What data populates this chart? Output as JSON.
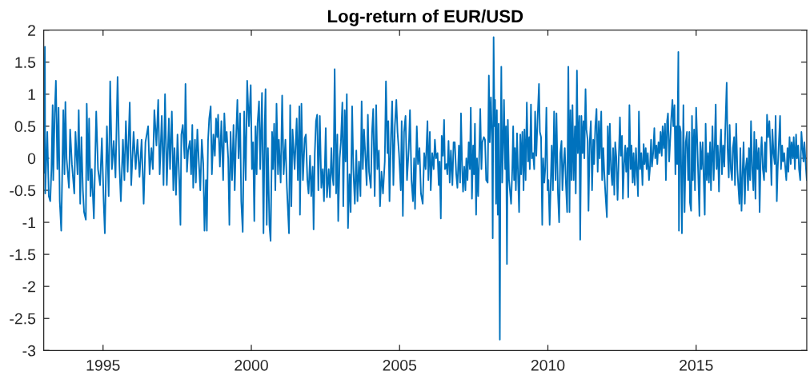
{
  "chart_data": {
    "type": "line",
    "title": "Log-return of EUR/USD",
    "x": [
      1993.0,
      1993.04,
      1993.05,
      1993.12,
      1993.17,
      1993.22,
      1993.26,
      1993.3,
      1993.32,
      1993.37,
      1993.41,
      1993.46,
      1993.5,
      1993.54,
      1993.59,
      1993.66,
      1993.7,
      1993.73,
      1993.77,
      1993.85,
      1993.89,
      1993.95,
      1994.03,
      1994.07,
      1994.14,
      1994.18,
      1994.23,
      1994.27,
      1994.32,
      1994.36,
      1994.42,
      1994.45,
      1994.5,
      1994.53,
      1994.58,
      1994.62,
      1994.69,
      1994.77,
      1994.83,
      1994.9,
      1994.96,
      1995.02,
      1995.06,
      1995.13,
      1995.19,
      1995.24,
      1995.3,
      1995.36,
      1995.42,
      1995.49,
      1995.55,
      1995.6,
      1995.67,
      1995.72,
      1995.77,
      1995.83,
      1995.9,
      1995.95,
      1996.03,
      1996.1,
      1996.16,
      1996.23,
      1996.3,
      1996.37,
      1996.43,
      1996.52,
      1996.57,
      1996.63,
      1996.68,
      1996.73,
      1996.8,
      1996.86,
      1996.91,
      1996.98,
      1997.04,
      1997.09,
      1997.15,
      1997.22,
      1997.26,
      1997.32,
      1997.37,
      1997.41,
      1997.46,
      1997.51,
      1997.57,
      1997.61,
      1997.64,
      1997.69,
      1997.75,
      1997.78,
      1997.83,
      1997.87,
      1997.93,
      1997.97,
      1998.01,
      1998.04,
      1998.1,
      1998.13,
      1998.18,
      1998.23,
      1998.28,
      1998.33,
      1998.38,
      1998.42,
      1998.47,
      1998.5,
      1998.54,
      1998.58,
      1998.63,
      1998.67,
      1998.72,
      1998.77,
      1998.81,
      1998.85,
      1998.88,
      1998.94,
      1998.99,
      1999.05,
      1999.09,
      1999.13,
      1999.17,
      1999.22,
      1999.26,
      1999.3,
      1999.35,
      1999.4,
      1999.44,
      1999.48,
      1999.53,
      1999.57,
      1999.62,
      1999.66,
      1999.71,
      1999.76,
      1999.81,
      1999.86,
      1999.92,
      1999.98,
      2000.02,
      2000.06,
      2000.1,
      2000.14,
      2000.18,
      2000.21,
      2000.26,
      2000.3,
      2000.36,
      2000.41,
      2000.45,
      2000.48,
      2000.52,
      2000.56,
      2000.61,
      2000.65,
      2000.7,
      2000.73,
      2000.77,
      2000.81,
      2000.85,
      2000.9,
      2000.93,
      2000.99,
      2001.04,
      2001.09,
      2001.15,
      2001.2,
      2001.27,
      2001.31,
      2001.35,
      2001.39,
      2001.46,
      2001.53,
      2001.57,
      2001.62,
      2001.64,
      2001.69,
      2001.74,
      2001.8,
      2001.84,
      2001.89,
      2001.93,
      2001.98,
      2002.02,
      2002.07,
      2002.1,
      2002.14,
      2002.18,
      2002.22,
      2002.26,
      2002.31,
      2002.36,
      2002.41,
      2002.45,
      2002.51,
      2002.55,
      2002.61,
      2002.65,
      2002.7,
      2002.73,
      2002.77,
      2002.81,
      2002.86,
      2002.9,
      2002.93,
      2002.98,
      2003.02,
      2003.07,
      2003.1,
      2003.15,
      2003.18,
      2003.22,
      2003.26,
      2003.31,
      2003.35,
      2003.4,
      2003.44,
      2003.49,
      2003.54,
      2003.58,
      2003.63,
      2003.68,
      2003.72,
      2003.76,
      2003.8,
      2003.85,
      2003.89,
      2003.93,
      2003.97,
      2004.03,
      2004.07,
      2004.11,
      2004.16,
      2004.21,
      2004.25,
      2004.3,
      2004.34,
      2004.39,
      2004.44,
      2004.5,
      2004.54,
      2004.59,
      2004.62,
      2004.66,
      2004.71,
      2004.75,
      2004.79,
      2004.84,
      2004.89,
      2004.93,
      2004.98,
      2005.04,
      2005.07,
      2005.11,
      2005.15,
      2005.2,
      2005.25,
      2005.31,
      2005.35,
      2005.4,
      2005.45,
      2005.49,
      2005.52,
      2005.58,
      2005.62,
      2005.67,
      2005.72,
      2005.78,
      2005.83,
      2005.88,
      2005.94,
      2005.97,
      2006.02,
      2006.05,
      2006.1,
      2006.15,
      2006.19,
      2006.23,
      2006.28,
      2006.32,
      2006.35,
      2006.39,
      2006.42,
      2006.46,
      2006.5,
      2006.53,
      2006.58,
      2006.61,
      2006.65,
      2006.69,
      2006.73,
      2006.78,
      2006.82,
      2006.86,
      2006.91,
      2006.95,
      2007.0,
      2007.04,
      2007.07,
      2007.11,
      2007.14,
      2007.18,
      2007.22,
      2007.25,
      2007.29,
      2007.33,
      2007.37,
      2007.4,
      2007.44,
      2007.48,
      2007.51,
      2007.54,
      2007.58,
      2007.61,
      2007.65,
      2007.68,
      2007.72,
      2007.76,
      2007.79,
      2007.84,
      2007.88,
      2007.92,
      2007.97,
      2008.01,
      2008.04,
      2008.08,
      2008.12,
      2008.14,
      2008.17,
      2008.2,
      2008.22,
      2008.25,
      2008.28,
      2008.31,
      2008.34,
      2008.38,
      2008.4,
      2008.43,
      2008.46,
      2008.49,
      2008.52,
      2008.56,
      2008.59,
      2008.62,
      2008.65,
      2008.69,
      2008.73,
      2008.76,
      2008.8,
      2008.83,
      2008.86,
      2008.89,
      2008.92,
      2008.96,
      2009.0,
      2009.03,
      2009.07,
      2009.1,
      2009.14,
      2009.18,
      2009.21,
      2009.25,
      2009.29,
      2009.33,
      2009.37,
      2009.39,
      2009.43,
      2009.46,
      2009.5,
      2009.54,
      2009.57,
      2009.61,
      2009.65,
      2009.7,
      2009.73,
      2009.77,
      2009.81,
      2009.84,
      2009.88,
      2009.91,
      2009.95,
      2009.99,
      2010.02,
      2010.06,
      2010.13,
      2010.17,
      2010.21,
      2010.26,
      2010.29,
      2010.34,
      2010.38,
      2010.42,
      2010.46,
      2010.49,
      2010.53,
      2010.57,
      2010.61,
      2010.65,
      2010.69,
      2010.73,
      2010.76,
      2010.8,
      2010.83,
      2010.87,
      2010.91,
      2010.94,
      2010.98,
      2011.01,
      2011.06,
      2011.09,
      2011.13,
      2011.17,
      2011.2,
      2011.23,
      2011.27,
      2011.3,
      2011.34,
      2011.37,
      2011.41,
      2011.45,
      2011.49,
      2011.53,
      2011.56,
      2011.6,
      2011.64,
      2011.68,
      2011.72,
      2011.75,
      2011.8,
      2011.83,
      2011.87,
      2011.9,
      2011.94,
      2011.99,
      2012.02,
      2012.06,
      2012.09,
      2012.13,
      2012.17,
      2012.2,
      2012.24,
      2012.27,
      2012.31,
      2012.35,
      2012.38,
      2012.43,
      2012.46,
      2012.5,
      2012.53,
      2012.57,
      2012.61,
      2012.64,
      2012.68,
      2012.71,
      2012.75,
      2012.79,
      2012.82,
      2012.86,
      2012.89,
      2012.93,
      2012.97,
      2013.0,
      2013.04,
      2013.07,
      2013.11,
      2013.15,
      2013.19,
      2013.23,
      2013.26,
      2013.3,
      2013.33,
      2013.37,
      2013.41,
      2013.44,
      2013.48,
      2013.51,
      2013.55,
      2013.59,
      2013.62,
      2013.66,
      2013.69,
      2013.73,
      2013.77,
      2013.8,
      2013.84,
      2013.87,
      2013.91,
      2013.95,
      2013.98,
      2014.02,
      2014.05,
      2014.09,
      2014.13,
      2014.16,
      2014.2,
      2014.23,
      2014.27,
      2014.3,
      2014.33,
      2014.36,
      2014.4,
      2014.42,
      2014.45,
      2014.48,
      2014.52,
      2014.57,
      2014.61,
      2014.65,
      2014.69,
      2014.73,
      2014.77,
      2014.79,
      2014.83,
      2014.86,
      2014.89,
      2014.93,
      2014.96,
      2015.0,
      2015.04,
      2015.07,
      2015.11,
      2015.14,
      2015.18,
      2015.22,
      2015.25,
      2015.29,
      2015.32,
      2015.36,
      2015.4,
      2015.43,
      2015.47,
      2015.5,
      2015.55,
      2015.59,
      2015.62,
      2015.66,
      2015.69,
      2015.73,
      2015.77,
      2015.8,
      2015.84,
      2015.87,
      2015.91,
      2015.95,
      2015.98,
      2016.03,
      2016.06,
      2016.1,
      2016.13,
      2016.17,
      2016.21,
      2016.24,
      2016.28,
      2016.31,
      2016.35,
      2016.39,
      2016.42,
      2016.46,
      2016.49,
      2016.53,
      2016.57,
      2016.6,
      2016.64,
      2016.67,
      2016.71,
      2016.75,
      2016.78,
      2016.82,
      2016.85,
      2016.89,
      2016.93,
      2016.96,
      2017.0,
      2017.03,
      2017.07,
      2017.11,
      2017.14,
      2017.18,
      2017.21,
      2017.25,
      2017.29,
      2017.32,
      2017.36,
      2017.39,
      2017.43,
      2017.47,
      2017.5,
      2017.54,
      2017.57,
      2017.61,
      2017.65,
      2017.68,
      2017.72,
      2017.75,
      2017.79,
      2017.83,
      2017.86,
      2017.9,
      2017.93,
      2017.97,
      2018.01,
      2018.04,
      2018.08,
      2018.11,
      2018.15,
      2018.19,
      2018.22,
      2018.26,
      2018.29,
      2018.33,
      2018.37,
      2018.4,
      2018.44,
      2018.47,
      2018.51,
      2018.55,
      2018.58,
      2018.62,
      2018.65,
      2018.7,
      2018.73
    ],
    "series": [
      {
        "color": "#0072bd",
        "values": [
          -0.23,
          1.74,
          -0.55,
          0.41,
          -0.59,
          -0.67,
          -0.17,
          0.83,
          -0.34,
          0.7,
          1.21,
          -0.17,
          0.79,
          -0.67,
          -1.13,
          0.75,
          -0.25,
          0.88,
          0.0,
          -0.46,
          0.45,
          -0.09,
          -0.55,
          0.41,
          -0.25,
          0.75,
          -0.71,
          0.33,
          -0.5,
          -0.84,
          -0.96,
          0.85,
          -0.34,
          0.62,
          -0.59,
          -0.17,
          -0.94,
          0.73,
          -0.17,
          -0.42,
          0.31,
          -0.67,
          -1.17,
          0.5,
          -0.59,
          1.2,
          -0.17,
          0.27,
          -0.3,
          1.27,
          -0.09,
          -0.67,
          0.29,
          -0.34,
          0.58,
          -0.21,
          0.87,
          -0.42,
          0.41,
          -0.17,
          0.29,
          -0.29,
          0.29,
          -0.71,
          0.25,
          0.5,
          -0.25,
          0.16,
          -0.17,
          0.75,
          0.2,
          0.91,
          -0.25,
          0.66,
          -0.42,
          1.0,
          -0.42,
          0.62,
          -0.17,
          0.73,
          -0.5,
          0.16,
          -0.57,
          0.37,
          -0.34,
          -1.04,
          0.37,
          0.52,
          0.0,
          1.16,
          -0.21,
          0.12,
          0.27,
          -0.25,
          0.52,
          -0.46,
          0.29,
          -0.38,
          0.45,
          -0.05,
          -0.5,
          0.29,
          -0.09,
          -1.13,
          -0.34,
          -1.13,
          0.27,
          0.62,
          0.81,
          -0.25,
          0.37,
          0.04,
          0.62,
          0.33,
          0.68,
          -0.13,
          0.58,
          -0.34,
          0.7,
          0.25,
          0.41,
          0.0,
          -1.04,
          0.41,
          -0.34,
          0.52,
          -0.5,
          0.25,
          0.91,
          0.0,
          0.7,
          -0.67,
          -1.15,
          0.73,
          -0.34,
          1.21,
          0.5,
          1.14,
          -0.17,
          0.25,
          -0.98,
          0.5,
          -0.25,
          0.54,
          0.89,
          -0.17,
          1.02,
          -1.17,
          0.5,
          1.08,
          -1.04,
          0.16,
          -1.04,
          -1.29,
          0.41,
          -0.17,
          0.54,
          -0.5,
          0.85,
          -0.25,
          0.29,
          -0.38,
          0.98,
          -0.25,
          0.29,
          -0.46,
          -1.17,
          0.83,
          -0.75,
          0.45,
          -0.17,
          0.62,
          -0.34,
          0.81,
          -0.88,
          0.85,
          -0.34,
          0.31,
          0.37,
          -0.34,
          -0.55,
          0.04,
          -0.59,
          -0.13,
          -1.11,
          0.08,
          0.58,
          0.68,
          -0.5,
          0.66,
          -0.46,
          -0.17,
          -0.67,
          0.47,
          -0.61,
          -0.17,
          -0.61,
          0.16,
          -0.25,
          -0.42,
          1.39,
          -0.55,
          0.37,
          -0.98,
          0.0,
          0.25,
          0.87,
          -0.75,
          0.75,
          -0.05,
          1.0,
          -1.09,
          -0.25,
          -0.84,
          0.81,
          -0.17,
          -0.71,
          0.12,
          -0.67,
          -0.05,
          -0.59,
          0.89,
          -0.17,
          0.45,
          0.0,
          -0.42,
          0.68,
          -0.21,
          -0.46,
          0.41,
          0.77,
          -0.59,
          0.83,
          -0.17,
          0.12,
          -0.75,
          -0.21,
          -0.55,
          -0.05,
          1.2,
          0.08,
          0.58,
          -0.67,
          0.37,
          0.89,
          -0.42,
          0.5,
          0.91,
          0.41,
          0.08,
          -0.5,
          0.58,
          -0.9,
          0.41,
          0.66,
          -0.34,
          0.16,
          0.75,
          -0.34,
          -0.67,
          0.0,
          -0.79,
          0.5,
          -0.09,
          0.16,
          -0.55,
          -0.71,
          0.08,
          -0.17,
          0.58,
          -0.34,
          0.41,
          -0.5,
          0.08,
          -0.17,
          0.29,
          0.0,
          0.08,
          -0.42,
          -0.05,
          -0.94,
          0.35,
          0.04,
          0.6,
          -0.17,
          -0.09,
          -0.25,
          0.27,
          -0.38,
          0.12,
          -0.42,
          0.25,
          0.25,
          -0.25,
          -0.46,
          0.2,
          -0.38,
          0.7,
          -0.17,
          -0.52,
          -0.13,
          -0.5,
          0.0,
          -0.34,
          0.25,
          -0.17,
          0.79,
          -0.63,
          0.2,
          -0.25,
          0.54,
          -0.88,
          0.0,
          -0.59,
          -0.05,
          0.77,
          -0.17,
          0.25,
          0.33,
          0.29,
          -0.34,
          -0.38,
          1.29,
          0.25,
          0.95,
          0.2,
          -1.25,
          1.89,
          0.5,
          0.91,
          -0.71,
          0.75,
          -0.88,
          0.54,
          -2.83,
          -0.17,
          1.43,
          -0.38,
          0.2,
          0.91,
          -0.17,
          0.5,
          -1.65,
          0.6,
          -0.34,
          -0.55,
          -0.71,
          -0.17,
          0.5,
          -0.34,
          0.16,
          -0.5,
          0.39,
          -0.38,
          -0.84,
          0.37,
          -0.25,
          0.41,
          -0.5,
          0.45,
          -0.34,
          0.87,
          -0.05,
          0.33,
          -0.17,
          0.84,
          0.0,
          0.08,
          -0.17,
          0.73,
          0.04,
          0.58,
          1.16,
          0.41,
          0.33,
          -1.04,
          0.0,
          -0.38,
          -0.17,
          0.79,
          -0.5,
          -0.34,
          -1.04,
          0.2,
          -0.5,
          0.73,
          -0.34,
          0.7,
          -0.55,
          -1.0,
          0.08,
          0.27,
          -0.5,
          -0.09,
          0.16,
          -0.42,
          -0.84,
          1.43,
          -0.84,
          0.75,
          -0.34,
          0.83,
          -0.34,
          0.5,
          -0.55,
          1.37,
          0.08,
          0.66,
          -1.27,
          0.66,
          0.08,
          0.58,
          0.0,
          1.08,
          0.45,
          0.29,
          -0.82,
          0.25,
          0.58,
          -0.5,
          0.29,
          -0.09,
          0.5,
          0.77,
          -0.21,
          0.58,
          0.0,
          0.73,
          -0.34,
          0.16,
          -0.21,
          -0.55,
          -0.92,
          0.5,
          -0.25,
          0.54,
          -0.17,
          -0.42,
          0.16,
          -0.57,
          0.25,
          0.0,
          -0.65,
          -0.17,
          0.64,
          0.04,
          0.35,
          -0.63,
          -0.09,
          0.2,
          -0.21,
          0.16,
          -0.61,
          0.83,
          -0.17,
          0.2,
          -0.38,
          0.08,
          -0.42,
          0.16,
          -0.17,
          -0.59,
          0.73,
          -0.17,
          0.08,
          -0.42,
          0.22,
          -0.09,
          0.16,
          -0.17,
          0.08,
          -0.34,
          -0.17,
          0.29,
          -0.13,
          0.08,
          0.47,
          0.0,
          0.2,
          -0.09,
          0.25,
          0.08,
          0.41,
          0.04,
          0.5,
          0.16,
          0.54,
          -0.34,
          0.58,
          0.7,
          -0.05,
          0.33,
          0.62,
          0.91,
          0.5,
          0.83,
          -0.25,
          0.5,
          -0.09,
          1.66,
          -1.13,
          0.5,
          0.41,
          -1.17,
          0.83,
          -0.84,
          0.25,
          0.41,
          -0.34,
          0.41,
          -0.69,
          -0.82,
          0.66,
          -0.34,
          0.45,
          -0.5,
          0.79,
          0.2,
          -0.25,
          -0.9,
          0.25,
          -0.17,
          0.25,
          -0.25,
          -0.88,
          0.54,
          -0.34,
          0.08,
          -0.38,
          0.25,
          -0.5,
          0.5,
          -0.34,
          0.08,
          0.84,
          -0.17,
          0.2,
          -0.52,
          0.08,
          0.45,
          -0.25,
          0.2,
          -0.13,
          0.41,
          1.18,
          0.16,
          -0.3,
          0.52,
          -0.17,
          -0.34,
          0.16,
          0.33,
          -0.42,
          0.54,
          -0.17,
          -0.42,
          -0.71,
          0.16,
          -0.82,
          -0.17,
          0.25,
          -0.71,
          -0.17,
          0.0,
          -0.5,
          0.16,
          -0.34,
          0.58,
          -0.17,
          -0.5,
          0.41,
          -0.63,
          0.29,
          -0.17,
          0.16,
          -0.84,
          0.08,
          0.33,
          -0.17,
          -0.34,
          0.25,
          -0.21,
          0.68,
          0.33,
          0.58,
          0.2,
          -0.42,
          0.45,
          0.08,
          -0.09,
          0.66,
          -0.67,
          -0.17,
          0.25,
          0.66,
          -0.17,
          0.2,
          -0.05,
          0.08,
          -0.17,
          -0.34,
          0.16,
          -0.21,
          0.33,
          -0.09,
          0.25,
          0.0,
          0.33,
          -0.17,
          0.37,
          0.0,
          0.2,
          -0.17,
          -0.34,
          0.41,
          0.2,
          -0.05,
          0.25,
          -0.13,
          -0.34
        ]
      }
    ],
    "xlim": [
      1993,
      2018.73
    ],
    "xticks": [
      1995,
      2000,
      2005,
      2010,
      2015
    ],
    "ylim": [
      -3,
      2
    ],
    "yticks": [
      -3,
      -2.5,
      -2,
      -1.5,
      -1,
      -0.5,
      0,
      0.5,
      1,
      1.5,
      2
    ],
    "line_style": "solid"
  }
}
